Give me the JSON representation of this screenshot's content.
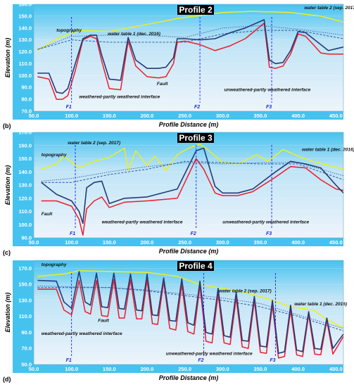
{
  "colors": {
    "background_top": "#46c2ef",
    "background_bottom": "#eef4fb",
    "topography": "#ecef1e",
    "water_table_1": "#3b5fa8",
    "water_table_2": "#3b5fa8",
    "weathered_partly": "#ee1c2a",
    "unweathered_partly": "#233a78",
    "fault": "#2020ff"
  },
  "chart_data": [
    {
      "type": "line",
      "title": "Profile 2",
      "panel": "(b)",
      "xlabel": "Profile Distance (m)",
      "ylabel": "Elevation (m)",
      "xlim": [
        50,
        460
      ],
      "ylim": [
        70,
        160
      ],
      "xticks": [
        "50.0",
        "100.0",
        "150.0",
        "200.0",
        "250.0",
        "300.0",
        "350.0",
        "400.0",
        "450.0"
      ],
      "yticks": [
        "70.0",
        "80.0",
        "90.0",
        "100.0",
        "110.0",
        "120.0",
        "130.0",
        "140.0",
        "150.0",
        "160.0"
      ],
      "faults": [
        {
          "label": "F1",
          "x": 100
        },
        {
          "label": "F2",
          "x": 270
        },
        {
          "label": "F3",
          "x": 365
        }
      ],
      "annotations": [
        {
          "text": "topography",
          "x": 80,
          "y": 137
        },
        {
          "text": "water table 1 (dec. 2016)",
          "x": 148,
          "y": 134
        },
        {
          "text": "water table 2 (sep. 2017)",
          "x": 408,
          "y": 156
        },
        {
          "text": "Fault",
          "x": 213,
          "y": 92
        },
        {
          "text": "weathered-partly weathered interface",
          "x": 110,
          "y": 81
        },
        {
          "text": "unweathered-partly weathered interface",
          "x": 302,
          "y": 87
        }
      ],
      "series": [
        {
          "name": "topography",
          "x": [
            55,
            80,
            110,
            150,
            200,
            240,
            300,
            340,
            390,
            430,
            460
          ],
          "y": [
            121,
            131,
            138,
            137,
            143,
            148,
            153,
            154,
            153,
            150,
            145
          ]
        },
        {
          "name": "water table 1 (dec. 2016)",
          "x": [
            55,
            100,
            150,
            200,
            250,
            300,
            350,
            400,
            460
          ],
          "y": [
            122,
            130,
            128,
            128,
            128,
            135,
            138,
            138,
            131
          ]
        },
        {
          "name": "water table 2 (sep. 2017)",
          "x": [
            55,
            100,
            150,
            200,
            250,
            300,
            350,
            400,
            460
          ],
          "y": [
            122,
            133,
            134,
            134,
            132,
            140,
            142,
            139,
            134
          ]
        },
        {
          "name": "weathered-partly weathered interface",
          "x": [
            55,
            70,
            80,
            88,
            95,
            105,
            115,
            125,
            133,
            140,
            150,
            165,
            175,
            185,
            200,
            215,
            225,
            235,
            240,
            250,
            270,
            290,
            310,
            330,
            355,
            362,
            370,
            380,
            390,
            400,
            410,
            420,
            430,
            440,
            460
          ],
          "y": [
            99,
            97,
            80,
            80,
            83,
            104,
            130,
            133,
            131,
            112,
            89,
            88,
            129,
            108,
            99,
            98,
            99,
            110,
            128,
            129,
            126,
            121,
            125,
            131,
            144,
            107,
            106,
            108,
            118,
            135,
            133,
            126,
            119,
            118,
            118
          ]
        },
        {
          "name": "unweathered-partly weathered interface",
          "x": [
            55,
            70,
            80,
            88,
            95,
            105,
            115,
            125,
            133,
            140,
            150,
            165,
            175,
            185,
            200,
            215,
            225,
            235,
            240,
            250,
            270,
            290,
            310,
            330,
            355,
            362,
            370,
            380,
            390,
            400,
            410,
            420,
            430,
            440,
            460
          ],
          "y": [
            102,
            102,
            86,
            85,
            89,
            110,
            131,
            134,
            134,
            117,
            97,
            96,
            132,
            113,
            106,
            106,
            107,
            115,
            131,
            131,
            130,
            131,
            136,
            140,
            147,
            113,
            110,
            111,
            121,
            137,
            136,
            131,
            126,
            121,
            124
          ]
        }
      ]
    },
    {
      "type": "line",
      "title": "Profile 3",
      "panel": "(c)",
      "xlabel": "Profile Distance (m)",
      "ylabel": "Elevation (m)",
      "xlim": [
        50,
        460
      ],
      "ylim": [
        90,
        170
      ],
      "xticks": [
        "50.0",
        "100.0",
        "150.0",
        "200.0",
        "250.0",
        "300.0",
        "350.0",
        "400.0",
        "450.0"
      ],
      "yticks": [
        "90.0",
        "100.0",
        "110.0",
        "120.0",
        "130.0",
        "140.0",
        "150.0",
        "160.0",
        "170.0"
      ],
      "faults": [
        {
          "label": "F1",
          "x": 105
        },
        {
          "label": "F2",
          "x": 265
        },
        {
          "label": "F3",
          "x": 365
        }
      ],
      "annotations": [
        {
          "text": "topography",
          "x": 60,
          "y": 152
        },
        {
          "text": "water table 2 (sep. 2017)",
          "x": 95,
          "y": 161
        },
        {
          "text": "water table 1 (dec. 2016)",
          "x": 405,
          "y": 156
        },
        {
          "text": "Fault",
          "x": 60,
          "y": 107
        },
        {
          "text": "weathered-partly weathered interface",
          "x": 140,
          "y": 101
        },
        {
          "text": "unweathered-partly weathered interface",
          "x": 300,
          "y": 101
        }
      ],
      "series": [
        {
          "name": "topography",
          "x": [
            60,
            80,
            90,
            110,
            130,
            150,
            170,
            175,
            185,
            200,
            210,
            225,
            240,
            255,
            270,
            280,
            300,
            320,
            345,
            360,
            380,
            400,
            420,
            440,
            460
          ],
          "y": [
            142,
            146,
            152,
            143,
            148,
            151,
            158,
            141,
            156,
            145,
            152,
            141,
            153,
            158,
            161,
            157,
            147,
            146,
            153,
            148,
            157,
            152,
            148,
            145,
            142
          ]
        },
        {
          "name": "water table 1 (dec. 2016)",
          "x": [
            60,
            100,
            150,
            200,
            250,
            300,
            350,
            400,
            460
          ],
          "y": [
            132,
            132,
            138,
            142,
            148,
            147,
            146,
            146,
            134
          ]
        },
        {
          "name": "water table 2 (sep. 2017)",
          "x": [
            60,
            100,
            150,
            200,
            250,
            300,
            350,
            400,
            460
          ],
          "y": [
            133,
            135,
            140,
            144,
            147,
            146,
            147,
            147,
            137
          ]
        },
        {
          "name": "weathered-partly weathered interface",
          "x": [
            60,
            80,
            100,
            110,
            115,
            120,
            130,
            140,
            150,
            170,
            200,
            240,
            265,
            275,
            290,
            300,
            320,
            340,
            370,
            390,
            410,
            430,
            450,
            460
          ],
          "y": [
            118,
            118,
            114,
            104,
            92,
            112,
            118,
            121,
            113,
            117,
            118,
            120,
            150,
            142,
            124,
            122,
            122,
            125,
            136,
            144,
            143,
            134,
            127,
            126
          ]
        },
        {
          "name": "unweathered-partly weathered interface",
          "x": [
            60,
            80,
            100,
            110,
            115,
            120,
            130,
            140,
            150,
            170,
            200,
            240,
            265,
            275,
            290,
            300,
            320,
            340,
            370,
            390,
            410,
            430,
            450,
            460
          ],
          "y": [
            132,
            123,
            118,
            110,
            101,
            128,
            132,
            133,
            116,
            120,
            121,
            127,
            156,
            158,
            129,
            124,
            124,
            127,
            140,
            148,
            146,
            143,
            130,
            124
          ]
        }
      ]
    },
    {
      "type": "line",
      "title": "Profile 4",
      "panel": "(d)",
      "xlabel": "Profile Distance (m)",
      "ylabel": "Elevation (m)",
      "xlim": [
        50,
        460
      ],
      "ylim": [
        50,
        180
      ],
      "xticks": [
        "50.0",
        "100.0",
        "150.0",
        "200.0",
        "250.0",
        "300.0",
        "350.0",
        "400.0",
        "450.0"
      ],
      "yticks": [
        "50.0",
        "70.0",
        "90.0",
        "110.0",
        "130.0",
        "150.0",
        "170.0"
      ],
      "faults": [
        {
          "label": "F1",
          "x": 100
        },
        {
          "label": "F2",
          "x": 275
        },
        {
          "label": "F3",
          "x": 370
        }
      ],
      "annotations": [
        {
          "text": "topography",
          "x": 60,
          "y": 173
        },
        {
          "text": "water table 2 (sep. 2017)",
          "x": 295,
          "y": 140
        },
        {
          "text": "water table 1 (dec. 2016)",
          "x": 395,
          "y": 124
        },
        {
          "text": "Fault",
          "x": 135,
          "y": 103
        },
        {
          "text": "weathered-partly weathered interface",
          "x": 60,
          "y": 87
        },
        {
          "text": "unweathered-partly weathered interface",
          "x": 225,
          "y": 62
        }
      ],
      "series": [
        {
          "name": "topography",
          "x": [
            55,
            90,
            110,
            150,
            200,
            240,
            270,
            300,
            330,
            360,
            390,
            420,
            440,
            460
          ],
          "y": [
            160,
            163,
            167,
            166,
            165,
            160,
            150,
            145,
            140,
            132,
            122,
            118,
            105,
            96
          ]
        },
        {
          "name": "water table 1 (dec. 2016)",
          "x": [
            55,
            100,
            150,
            200,
            250,
            300,
            350,
            400,
            460
          ],
          "y": [
            146,
            146,
            146,
            142,
            136,
            130,
            122,
            110,
            92
          ]
        },
        {
          "name": "water table 2 (sep. 2017)",
          "x": [
            55,
            100,
            150,
            200,
            250,
            300,
            350,
            400,
            460
          ],
          "y": [
            148,
            147,
            146,
            143,
            138,
            133,
            126,
            112,
            95
          ]
        },
        {
          "name": "weathered-partly weathered interface",
          "x": [
            55,
            80,
            90,
            100,
            110,
            118,
            125,
            133,
            140,
            148,
            156,
            163,
            170,
            178,
            186,
            193,
            200,
            207,
            214,
            222,
            230,
            238,
            246,
            254,
            262,
            270,
            278,
            286,
            294,
            302,
            310,
            318,
            326,
            334,
            342,
            350,
            358,
            366,
            374,
            382,
            390,
            398,
            406,
            414,
            422,
            430,
            438,
            446,
            460
          ],
          "y": [
            144,
            144,
            118,
            112,
            155,
            116,
            113,
            155,
            111,
            110,
            156,
            108,
            108,
            156,
            107,
            107,
            156,
            101,
            100,
            154,
            95,
            93,
            150,
            91,
            88,
            148,
            79,
            77,
            138,
            77,
            75,
            133,
            72,
            70,
            130,
            65,
            64,
            124,
            58,
            60,
            118,
            62,
            60,
            112,
            63,
            62,
            105,
            63,
            85
          ]
        },
        {
          "name": "unweathered-partly weathered interface",
          "x": [
            55,
            80,
            90,
            100,
            110,
            118,
            125,
            133,
            140,
            148,
            156,
            163,
            170,
            178,
            186,
            193,
            200,
            207,
            214,
            222,
            230,
            238,
            246,
            254,
            262,
            270,
            278,
            286,
            294,
            302,
            310,
            318,
            326,
            334,
            342,
            350,
            358,
            366,
            374,
            382,
            390,
            398,
            406,
            414,
            422,
            430,
            438,
            446,
            460
          ],
          "y": [
            155,
            154,
            128,
            120,
            166,
            128,
            124,
            164,
            122,
            121,
            164,
            120,
            119,
            163,
            118,
            117,
            163,
            112,
            111,
            158,
            105,
            104,
            157,
            102,
            99,
            154,
            90,
            88,
            145,
            86,
            84,
            140,
            80,
            79,
            135,
            73,
            72,
            130,
            64,
            66,
            124,
            68,
            66,
            116,
            70,
            69,
            108,
            70,
            88
          ]
        }
      ]
    }
  ]
}
